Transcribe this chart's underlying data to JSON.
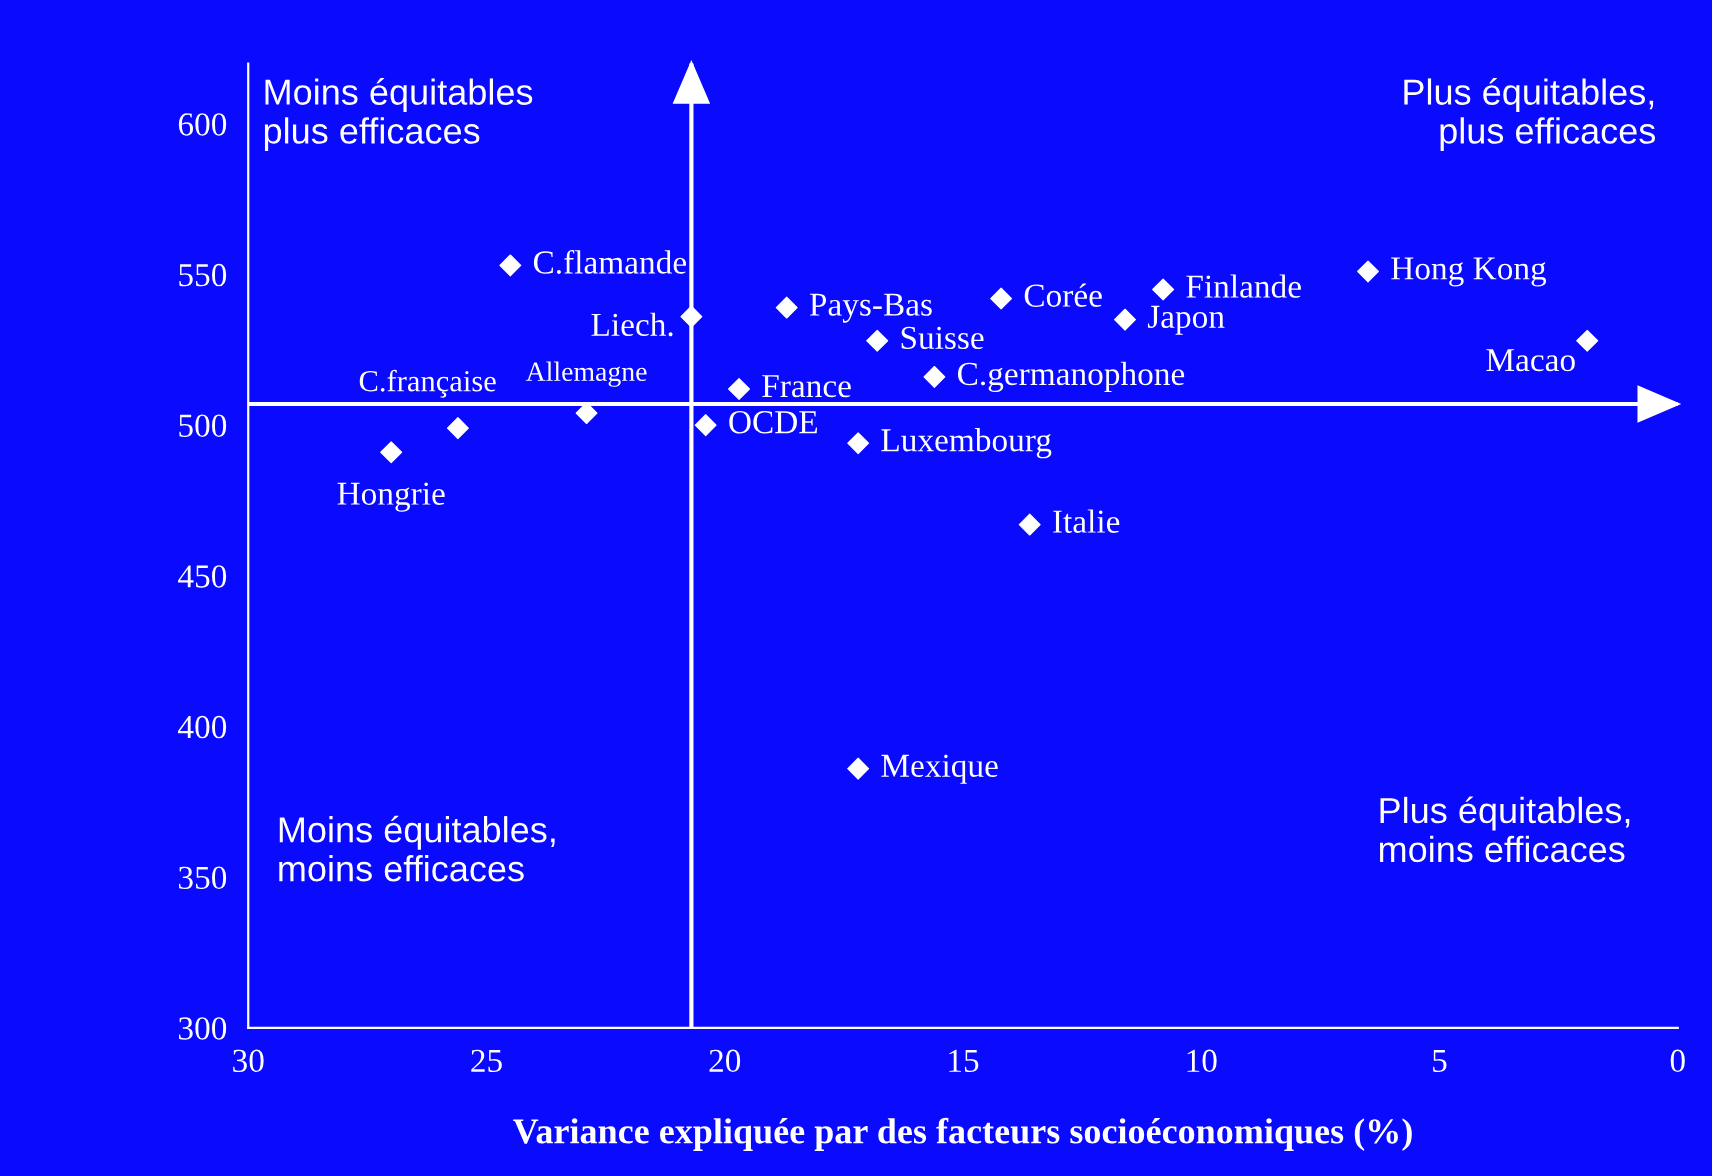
{
  "chart_data": {
    "type": "scatter",
    "xlabel": "Variance expliquée par des facteurs socioéconomiques (%)",
    "xlim": [
      30,
      0
    ],
    "xticks": [
      30,
      25,
      20,
      15,
      10,
      5,
      0
    ],
    "ylim": [
      300,
      620
    ],
    "yticks": [
      300,
      350,
      400,
      450,
      500,
      550,
      600
    ],
    "marker": "diamond",
    "grid": false,
    "legend": false,
    "series": [
      {
        "color": "#ffffff",
        "x": [
          24.5,
          20.7,
          18.7,
          14.2,
          10.8,
          6.5,
          1.9,
          11.6,
          16.8,
          15.6,
          19.7,
          20.4,
          17.2,
          13.6,
          17.2,
          22.9,
          25.6,
          27.0
        ],
        "values": [
          553,
          536,
          539,
          542,
          545,
          551,
          528,
          535,
          528,
          516,
          512,
          500,
          494,
          467,
          386,
          504,
          499,
          491
        ]
      }
    ],
    "ref_lines": [
      {
        "axis": "x",
        "value": 20.7,
        "color": "#ffffff"
      },
      {
        "axis": "y",
        "value": 507,
        "color": "#ffffff"
      }
    ],
    "annotations": [
      {
        "text": "C.flamande",
        "x": 24.5,
        "y": 553
      },
      {
        "text": "Liech.",
        "x": 20.7,
        "y": 536
      },
      {
        "text": "Pays-Bas",
        "x": 18.7,
        "y": 539
      },
      {
        "text": "Corée",
        "x": 14.2,
        "y": 542
      },
      {
        "text": "Finlande",
        "x": 10.8,
        "y": 545
      },
      {
        "text": "Hong Kong",
        "x": 6.5,
        "y": 551
      },
      {
        "text": "Macao",
        "x": 1.9,
        "y": 528
      },
      {
        "text": "Japon",
        "x": 11.6,
        "y": 535
      },
      {
        "text": "Suisse",
        "x": 16.8,
        "y": 528
      },
      {
        "text": "C.germanophone",
        "x": 15.6,
        "y": 516
      },
      {
        "text": "France",
        "x": 19.7,
        "y": 512
      },
      {
        "text": "OCDE",
        "x": 20.4,
        "y": 500
      },
      {
        "text": "Luxembourg",
        "x": 17.2,
        "y": 494
      },
      {
        "text": "Italie",
        "x": 13.6,
        "y": 467
      },
      {
        "text": "Mexique",
        "x": 17.2,
        "y": 386
      },
      {
        "text": "Allemagne",
        "x": 22.9,
        "y": 504
      },
      {
        "text": "C.française",
        "x": 25.6,
        "y": 499
      },
      {
        "text": "Hongrie",
        "x": 27.0,
        "y": 491
      },
      "Moins équitables\nplus efficaces",
      "Plus équitables,\nplus efficaces",
      "Moins équitables,\nmoins efficaces",
      "Plus équitables,\nmoins efficaces"
    ]
  }
}
